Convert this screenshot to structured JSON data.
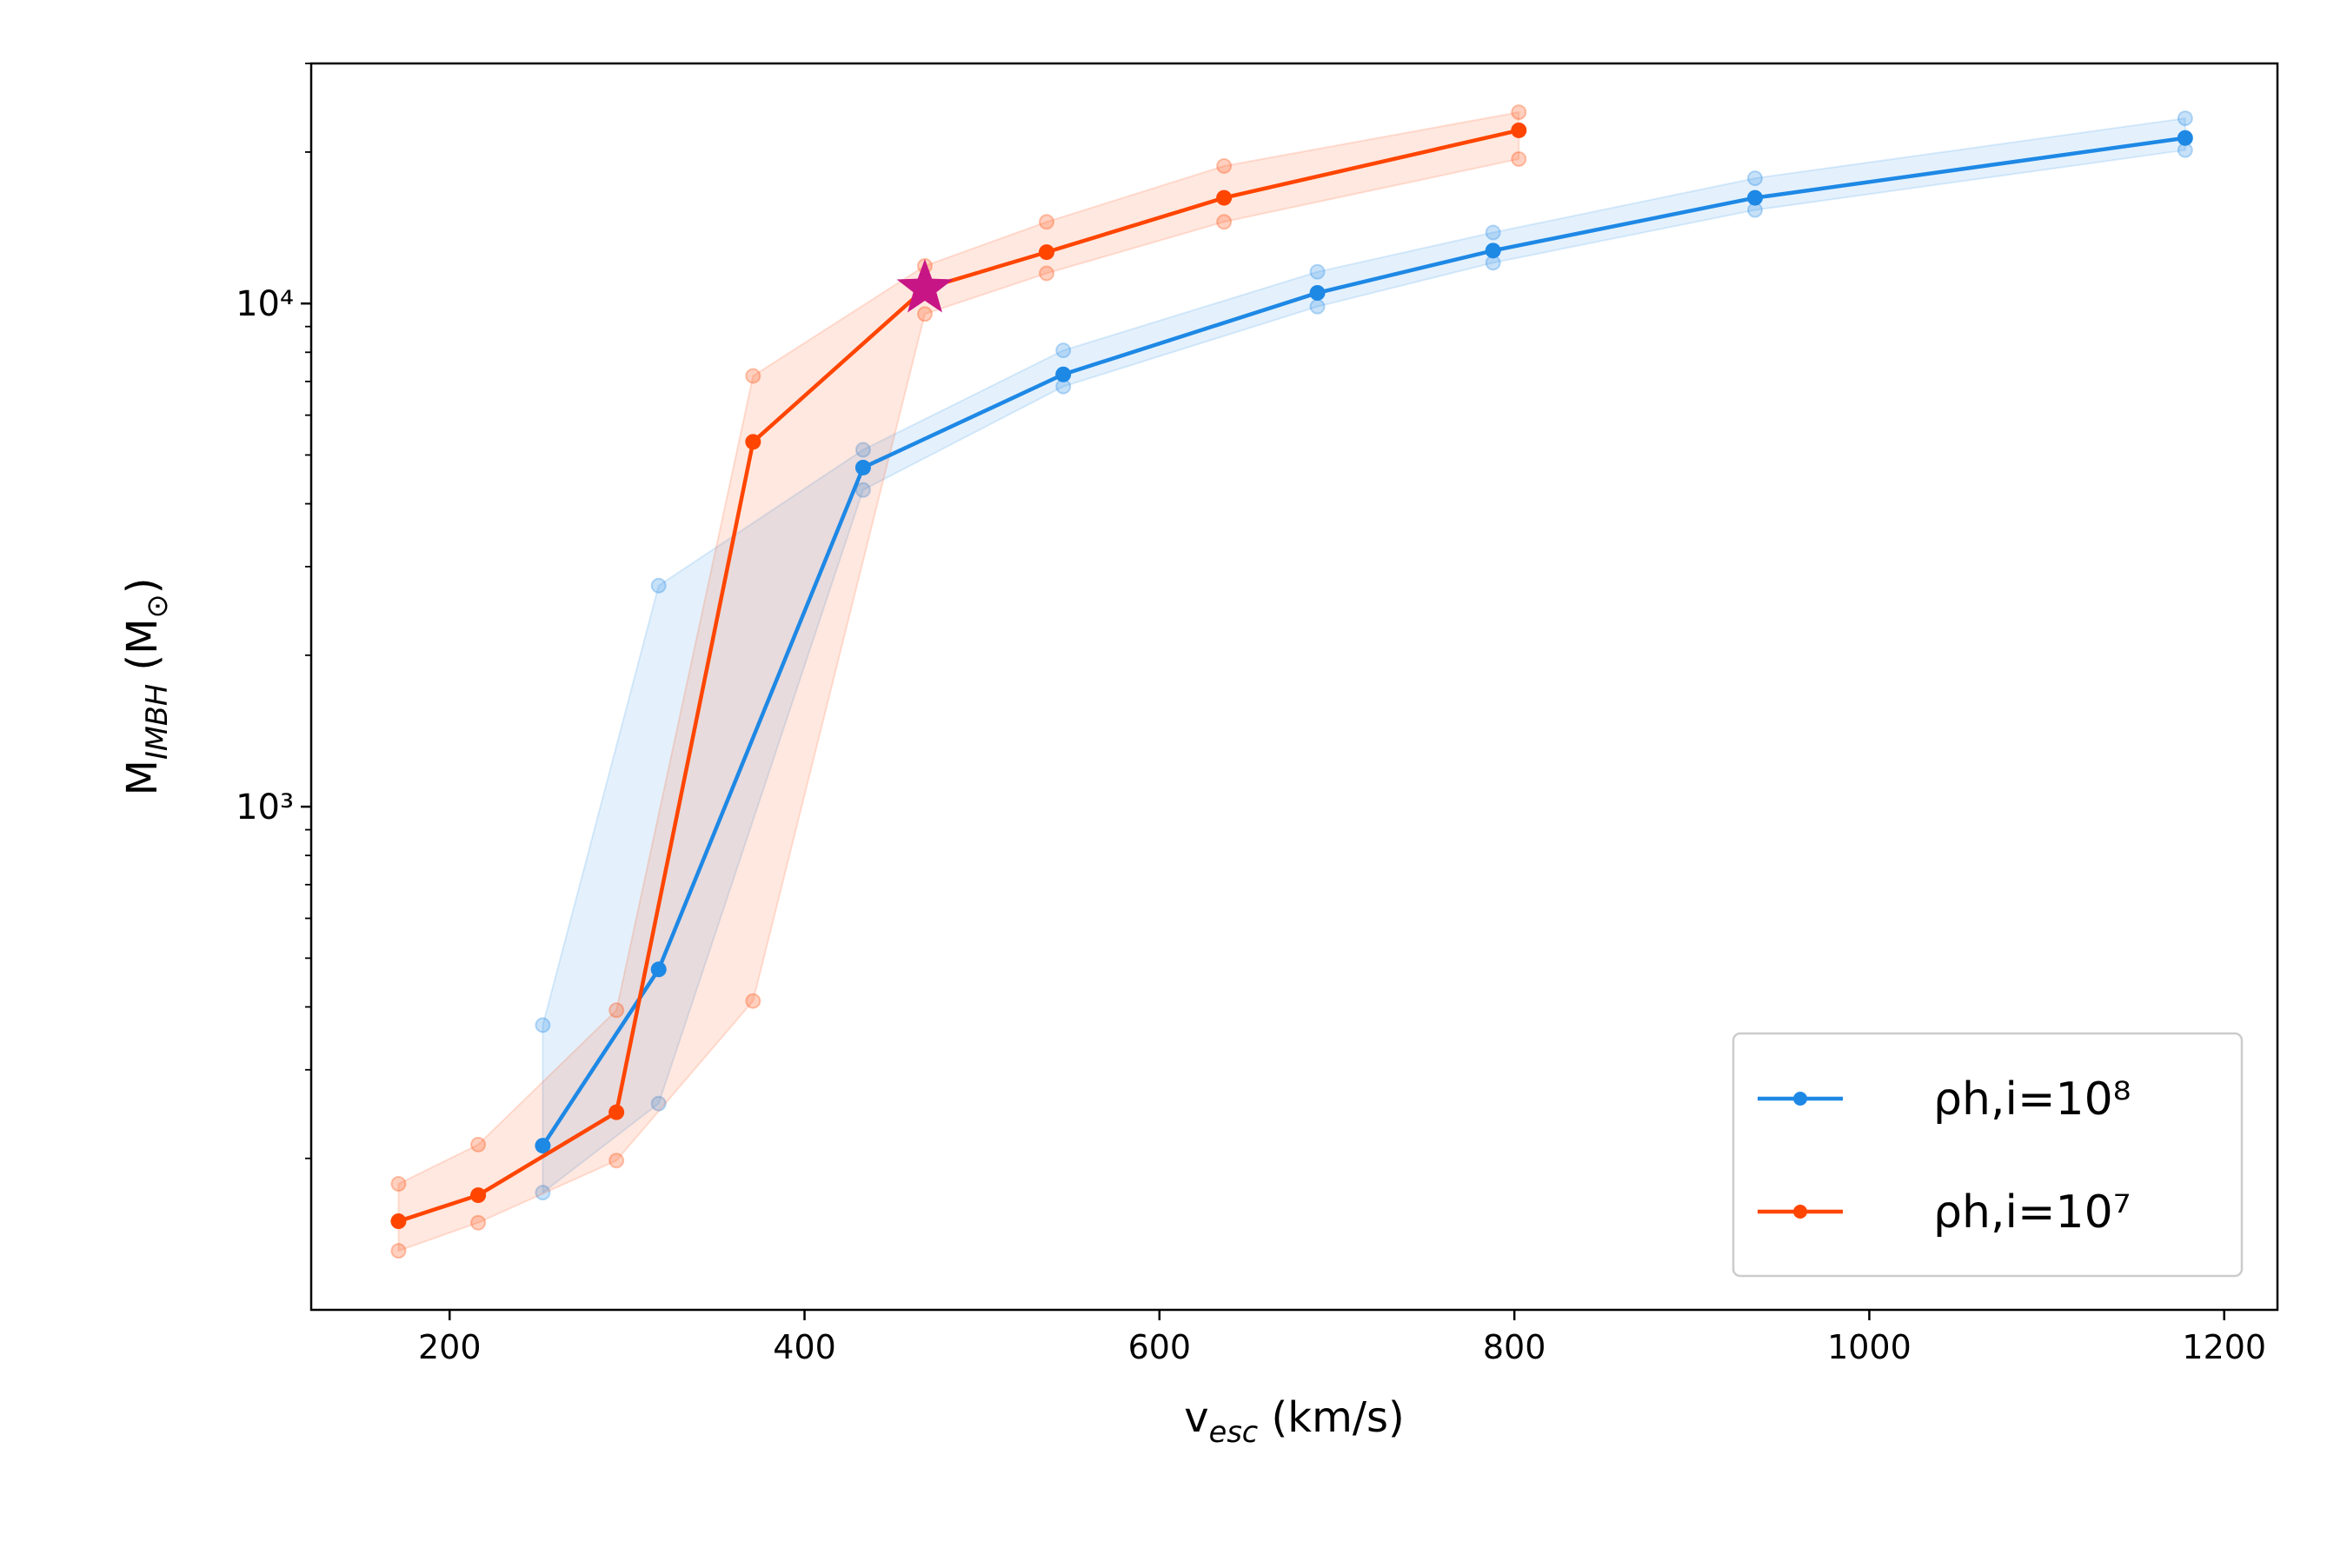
{
  "chart_data": {
    "type": "line",
    "xlabel": [
      "v",
      "esc",
      " (km/s)"
    ],
    "ylabel": [
      "M",
      "IMBH",
      " (M",
      "⊙",
      ")"
    ],
    "log_y": true,
    "xlim": [
      122,
      1230
    ],
    "ylim": [
      100,
      30000
    ],
    "xticks": [
      200,
      400,
      600,
      800,
      1000,
      1200
    ],
    "yticks": [
      {
        "value": 1000,
        "label": "10³"
      },
      {
        "value": 10000,
        "label": "10⁴"
      }
    ],
    "yminorticks": [
      200,
      300,
      400,
      500,
      600,
      700,
      800,
      900,
      2000,
      3000,
      4000,
      5000,
      6000,
      7000,
      8000,
      9000,
      20000,
      30000
    ],
    "legend": "lower right",
    "series": [
      {
        "name": "ρh,i=10⁸",
        "color": "#1e88e5",
        "x": [
          252.5,
          317.8,
          433,
          545.8,
          689,
          788,
          935.6,
          1178
        ],
        "values": [
          212,
          475,
          4720,
          7230,
          10500,
          12740,
          16220,
          21330
        ],
        "upper": [
          368,
          2750,
          5120,
          8070,
          11560,
          13840,
          17740,
          23340
        ],
        "lower": [
          171,
          257,
          4260,
          6840,
          9860,
          12050,
          15340,
          20180
        ]
      },
      {
        "name": "ρh,i=10⁷",
        "color": "#ff4500",
        "x": [
          171.2,
          216.1,
          294,
          371,
          467.8,
          536.4,
          636.4,
          802.5
        ],
        "values": [
          150,
          169,
          247,
          5310,
          10710,
          12650,
          16220,
          22090
        ],
        "upper": [
          178,
          213,
          394,
          7180,
          11880,
          14530,
          18760,
          24000
        ],
        "lower": [
          131,
          149,
          198,
          411,
          9530,
          11480,
          14530,
          19370
        ]
      }
    ],
    "star": {
      "x": 467.8,
      "y": 10710,
      "color": "#c71585"
    }
  }
}
